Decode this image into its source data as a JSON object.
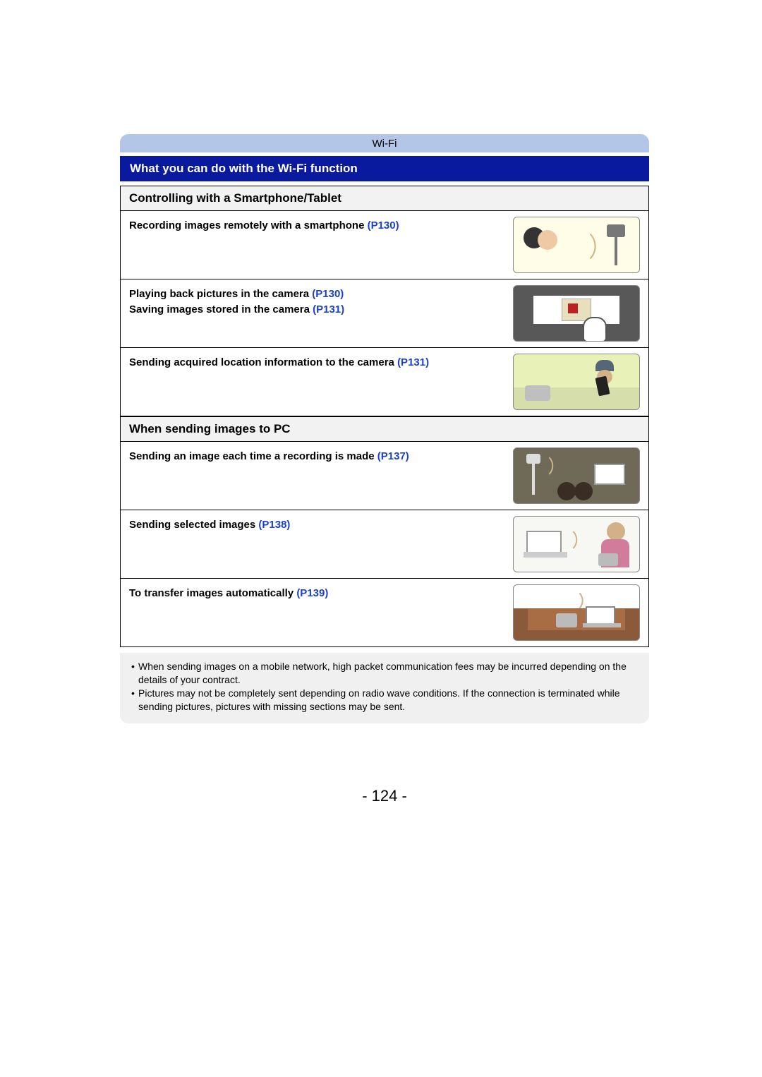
{
  "header": {
    "tab": "Wi-Fi"
  },
  "title_bar": "What you can do with the Wi-Fi function",
  "section1": {
    "header": "Controlling with a Smartphone/Tablet",
    "rows": [
      {
        "text1": "Recording images remotely with a smartphone ",
        "ref1": "(P130)"
      },
      {
        "text1": "Playing back pictures in the camera ",
        "ref1": "(P130)",
        "text2": "Saving images stored in the camera ",
        "ref2": "(P131)"
      },
      {
        "text1": "Sending acquired location information to the camera ",
        "ref1": "(P131)"
      }
    ]
  },
  "section2": {
    "header": "When sending images to PC",
    "rows": [
      {
        "text1": "Sending an image each time a recording is made ",
        "ref1": "(P137)"
      },
      {
        "text1": "Sending selected images ",
        "ref1": "(P138)"
      },
      {
        "text1": "To transfer images automatically ",
        "ref1": "(P139)"
      }
    ]
  },
  "notes": {
    "n1": "When sending images on a mobile network, high packet communication fees may be incurred depending on the details of your contract.",
    "n2": "Pictures may not be completely sent depending on radio wave conditions. If the connection is terminated while sending pictures, pictures with missing sections may be sent."
  },
  "page_number": "- 124 -",
  "colors": {
    "tab_bg": "#b3c6e7",
    "title_bg": "#0a1a9e",
    "link": "#1a3fd1",
    "notes_bg": "#f0f0f0",
    "section_header_bg": "#f2f2f2"
  }
}
